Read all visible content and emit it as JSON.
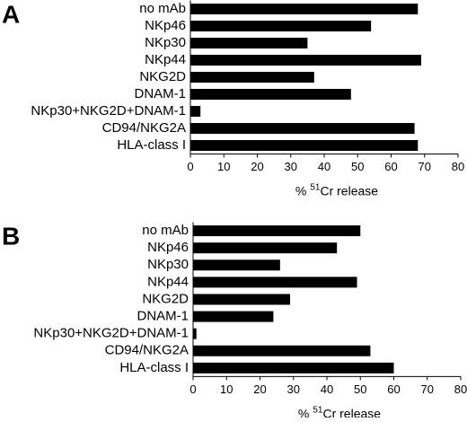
{
  "chart_data": [
    {
      "type": "bar",
      "panel_label": "A",
      "categories": [
        "no mAb",
        "NKp46",
        "NKp30",
        "NKp44",
        "NKG2D",
        "DNAM-1",
        "NKp30+NKG2D+DNAM-1",
        "CD94/NKG2A",
        "HLA-class I"
      ],
      "values": [
        68,
        54,
        35,
        69,
        37,
        48,
        3,
        67,
        68
      ],
      "color": "#000000",
      "xlim": [
        0,
        80
      ],
      "xticks": [
        0,
        10,
        20,
        30,
        40,
        50,
        60,
        70,
        80
      ],
      "xlabel_parts": [
        "%",
        "51",
        "Cr release"
      ]
    },
    {
      "type": "bar",
      "panel_label": "B",
      "categories": [
        "no mAb",
        "NKp46",
        "NKp30",
        "NKp44",
        "NKG2D",
        "DNAM-1",
        "NKp30+NKG2D+DNAM-1",
        "CD94/NKG2A",
        "HLA-class I"
      ],
      "values": [
        50,
        43,
        26,
        49,
        29,
        24,
        1,
        53,
        60
      ],
      "color": "#000000",
      "xlim": [
        0,
        80
      ],
      "xticks": [
        0,
        10,
        20,
        30,
        40,
        50,
        60,
        70,
        80
      ],
      "xlabel_parts": [
        "%",
        "51",
        "Cr release"
      ]
    }
  ]
}
